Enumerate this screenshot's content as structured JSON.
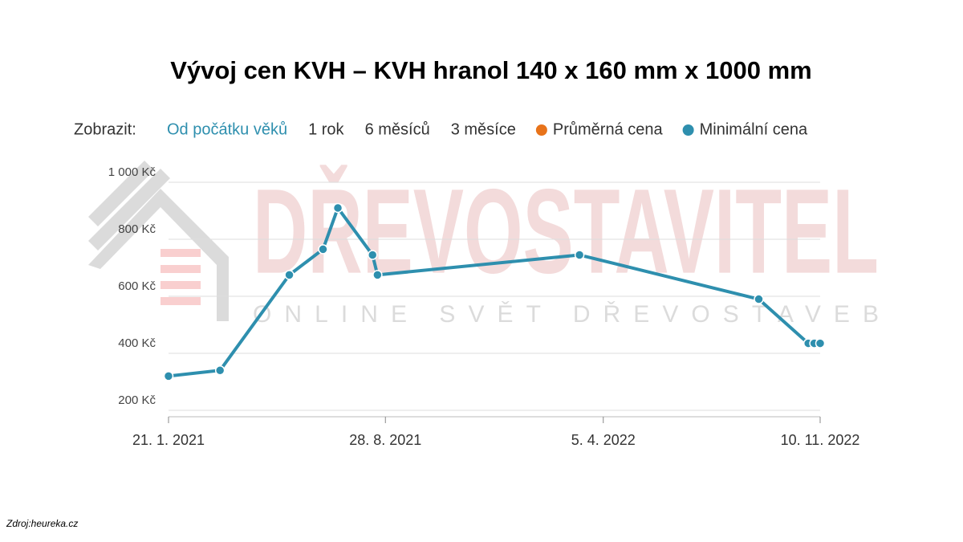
{
  "chart_data": {
    "type": "line",
    "title": "Vývoj cen KVH – KVH hranol 140 x 160 mm x 1000 mm",
    "controls": {
      "label": "Zobrazit:",
      "options": [
        "Od počátku věků",
        "1 rok",
        "6 měsíců",
        "3 měsíce"
      ],
      "active": 0
    },
    "x": [
      "2021-01-21",
      "2021-03-14",
      "2021-05-23",
      "2021-06-26",
      "2021-07-11",
      "2021-08-15",
      "2021-08-20",
      "2022-03-12",
      "2022-09-09",
      "2022-10-29",
      "2022-11-04",
      "2022-11-10"
    ],
    "series": [
      {
        "name": "Průměrná cena",
        "color": "#e8731a",
        "values": [
          null,
          null,
          null,
          null,
          null,
          null,
          null,
          null,
          null,
          null,
          null,
          null
        ]
      },
      {
        "name": "Minimální cena",
        "color": "#2e8fae",
        "values": [
          320,
          340,
          675,
          765,
          910,
          745,
          675,
          745,
          590,
          435,
          435,
          435
        ]
      }
    ],
    "xlim": [
      "2021-01-21",
      "2022-11-10"
    ],
    "xticks": [
      {
        "value": "2021-01-21",
        "label": "21. 1. 2021"
      },
      {
        "value": "2021-08-28",
        "label": "28. 8. 2021"
      },
      {
        "value": "2022-04-05",
        "label": "5. 4. 2022"
      },
      {
        "value": "2022-11-10",
        "label": "10. 11. 2022"
      }
    ],
    "ylim": [
      200,
      1000
    ],
    "yticks": [
      {
        "value": 200,
        "label": "200 Kč"
      },
      {
        "value": 400,
        "label": "400 Kč"
      },
      {
        "value": 600,
        "label": "600 Kč"
      },
      {
        "value": 800,
        "label": "800 Kč"
      },
      {
        "value": 1000,
        "label": "1 000 Kč"
      }
    ],
    "grid": true,
    "watermark": {
      "brand": "DŘEVOSTAVITEL",
      "tagline": "ONLINE SVĚT DŘEVOSTAVEB"
    },
    "source": "Zdroj:heureka.cz"
  }
}
